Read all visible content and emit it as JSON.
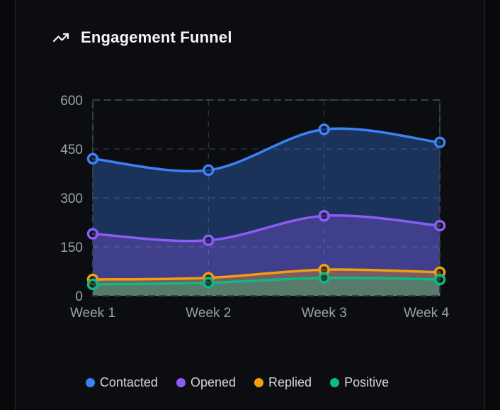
{
  "card": {
    "title": "Engagement Funnel"
  },
  "chart_data": {
    "type": "area",
    "title": "Engagement Funnel",
    "x": [
      "Week 1",
      "Week 2",
      "Week 3",
      "Week 4"
    ],
    "series": [
      {
        "name": "Contacted",
        "color": "#3b82f6",
        "values": [
          420,
          385,
          510,
          470
        ]
      },
      {
        "name": "Opened",
        "color": "#8b5cf6",
        "values": [
          190,
          170,
          245,
          215
        ]
      },
      {
        "name": "Replied",
        "color": "#f59e0b",
        "values": [
          50,
          55,
          80,
          72
        ]
      },
      {
        "name": "Positive",
        "color": "#10b981",
        "values": [
          35,
          40,
          55,
          50
        ]
      }
    ],
    "ylim": [
      0,
      600
    ],
    "yticks": [
      0,
      150,
      300,
      450,
      600
    ],
    "grid": true,
    "grid_style": "dashed",
    "legend_position": "bottom",
    "fill_opacity": 0.32,
    "stacked": false,
    "line_width": 3.5,
    "point_style": "hollow-circle"
  },
  "colors": {
    "page_background": "#08080a",
    "card_background": "#0c0d11",
    "card_border": "#26272d",
    "title_text": "#f4f4f6",
    "axis_text": "#9aa1ab",
    "legend_text": "#d2d5da",
    "grid": "rgba(158,173,198,0.22)",
    "plot_border": "#3a4049",
    "marker_fill": "rgba(10,13,18,0.6)"
  },
  "icons": {
    "title_icon": "trending-up-icon"
  }
}
